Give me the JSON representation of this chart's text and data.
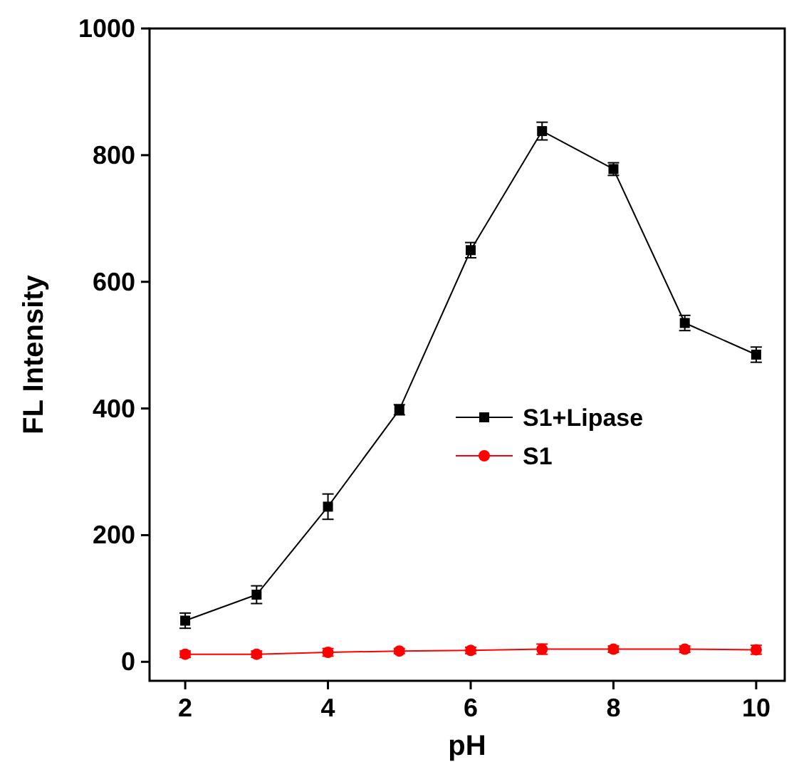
{
  "chart_data": {
    "type": "line",
    "xlabel": "pH",
    "ylabel": "FL Intensity",
    "x": [
      2,
      3,
      4,
      5,
      6,
      7,
      8,
      9,
      10
    ],
    "xlim": [
      1.5,
      10.4
    ],
    "xticks": [
      2,
      4,
      6,
      8,
      10
    ],
    "ylim": [
      -30,
      1000
    ],
    "yticks": [
      0,
      200,
      400,
      600,
      800,
      1000
    ],
    "grid": false,
    "legend": "right",
    "line_style": "solid",
    "series": [
      {
        "name": "S1+Lipase",
        "color": "#000000",
        "marker": "square",
        "values": [
          65,
          106,
          245,
          398,
          650,
          838,
          778,
          535,
          485
        ],
        "errors": [
          12,
          14,
          20,
          8,
          12,
          14,
          10,
          12,
          12
        ]
      },
      {
        "name": "S1",
        "color": "#ff0000",
        "marker": "circle",
        "values": [
          12,
          12,
          15,
          17,
          18,
          20,
          20,
          20,
          19
        ],
        "errors": [
          5,
          5,
          6,
          4,
          5,
          8,
          5,
          5,
          7
        ]
      }
    ]
  }
}
